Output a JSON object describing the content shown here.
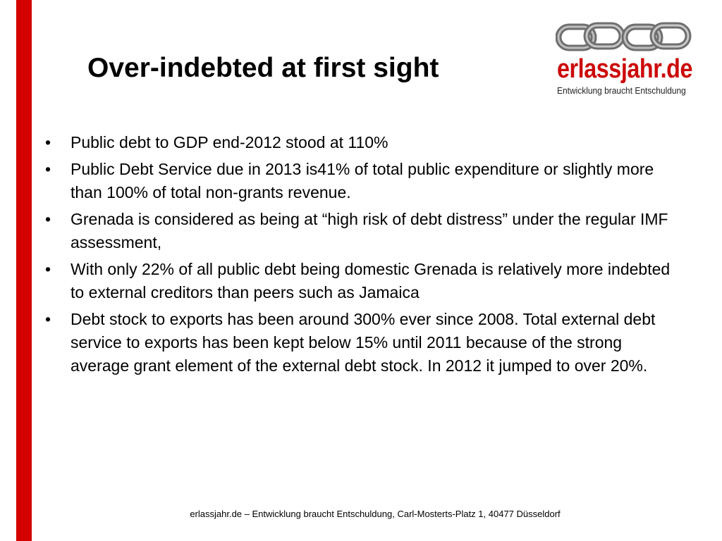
{
  "title": "Over-indebted at first sight",
  "logo": {
    "name": "erlassjahr.de",
    "tagline": "Entwicklung braucht Entschuldung",
    "icon": "chain-links-icon",
    "brand_color": "#cc0a0a"
  },
  "accent_bar_color": "#d40000",
  "bullets": [
    {
      "text": "Public debt to GDP end-2012 stood at 110%"
    },
    {
      "text": "Public Debt Service due in 2013 is41% of total public expenditure or slightly more than 100% of total non-grants revenue."
    },
    {
      "text": "Grenada is considered as being at “high risk of debt distress” under the regular IMF assessment,"
    },
    {
      "text": "With only 22% of all public debt being domestic Grenada is relatively more indebted to external creditors than peers such as Jamaica"
    },
    {
      "text": "Debt stock to exports has been around 300% ever since 2008. Total external debt service to exports has been kept below 15% until 2011 because of the strong average grant element of the external debt stock. In 2012 it jumped to over 20%."
    }
  ],
  "bullet_symbol": "•",
  "footer": "erlassjahr.de – Entwicklung braucht Entschuldung, Carl-Mosterts-Platz 1, 40477 Düsseldorf"
}
